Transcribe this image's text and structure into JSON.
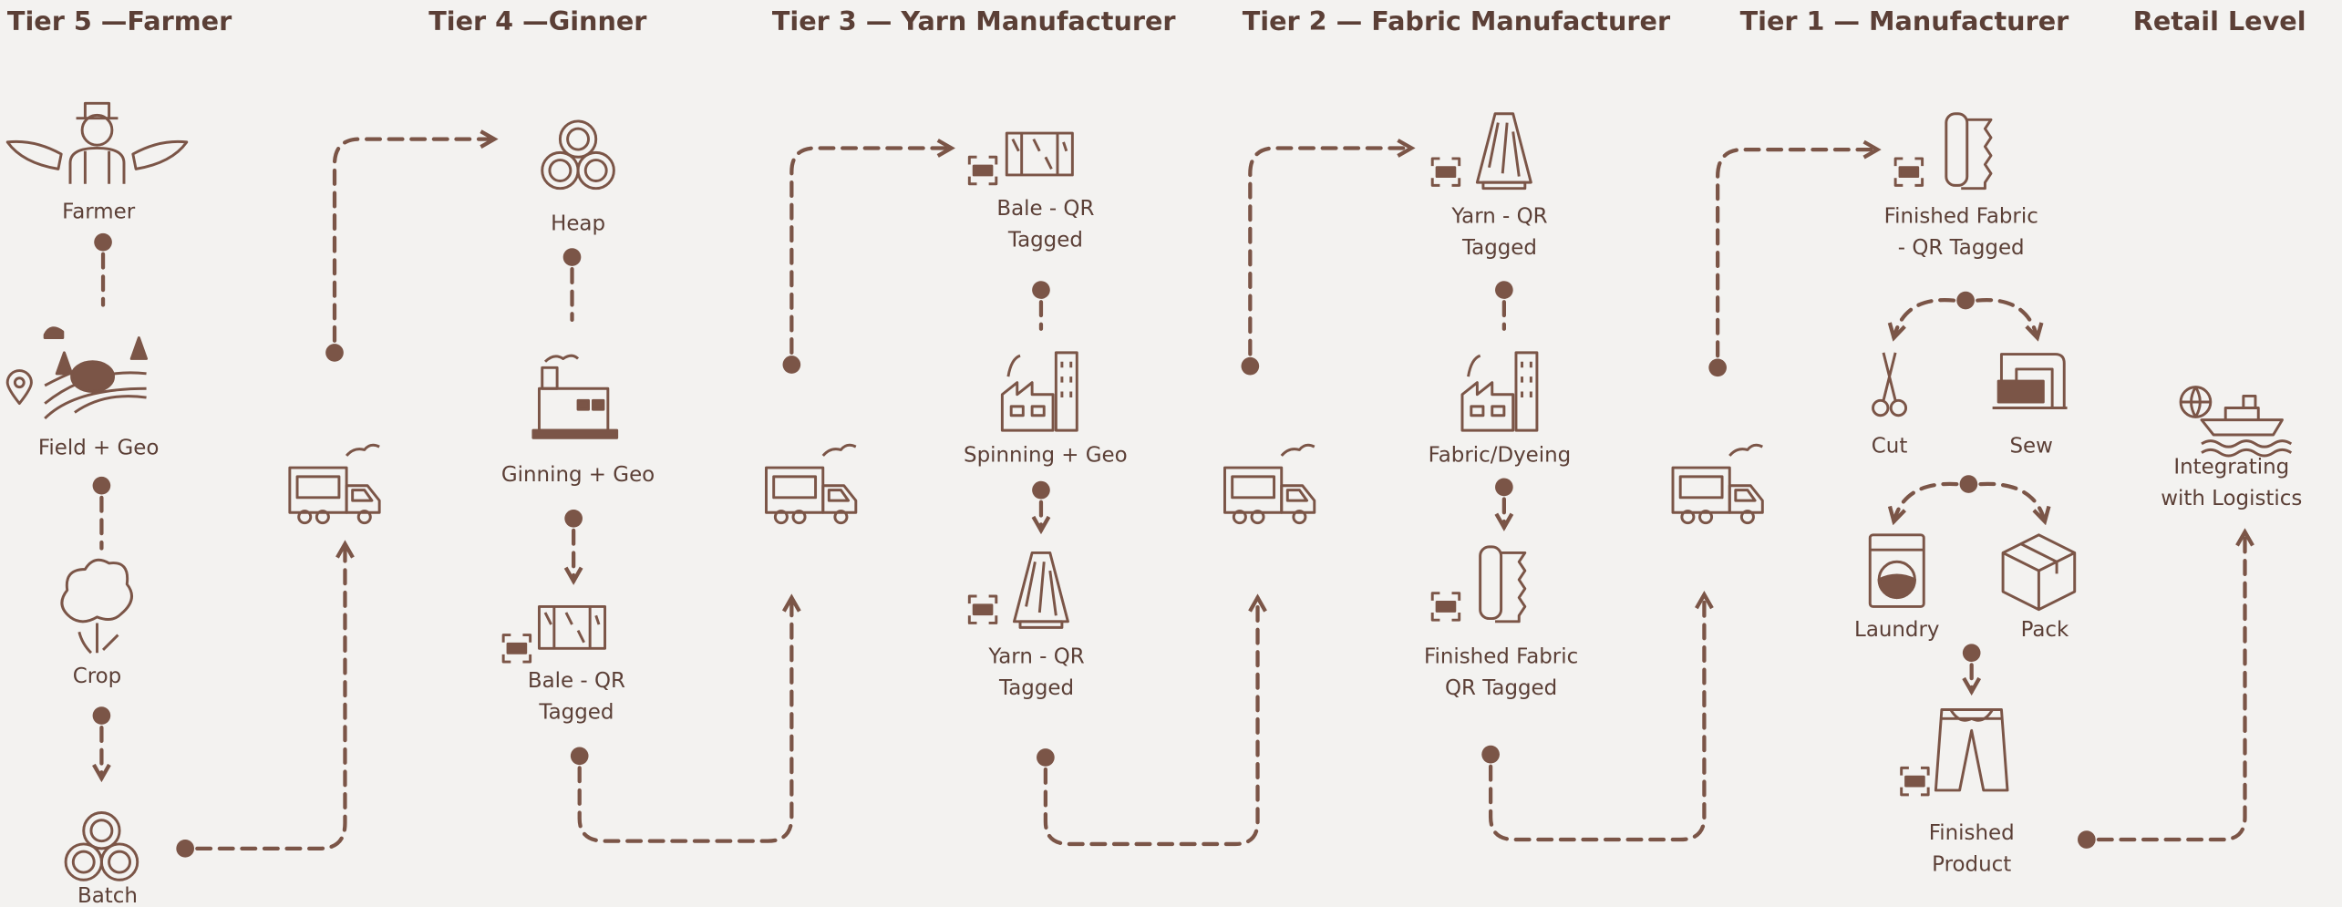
{
  "tiers": [
    {
      "title": "Tier 5 —Farmer",
      "nodes": [
        {
          "lines": [
            "Farmer"
          ]
        },
        {
          "lines": [
            "Field + Geo"
          ]
        },
        {
          "lines": [
            "Crop"
          ]
        },
        {
          "lines": [
            "Batch"
          ]
        }
      ]
    },
    {
      "title": "Tier 4 —Ginner",
      "nodes": [
        {
          "lines": [
            "Heap"
          ]
        },
        {
          "lines": [
            "Ginning + Geo"
          ]
        },
        {
          "lines": [
            "Bale - QR",
            "Tagged"
          ]
        }
      ]
    },
    {
      "title": "Tier 3 — Yarn Manufacturer",
      "nodes": [
        {
          "lines": [
            "Bale - QR",
            "Tagged"
          ]
        },
        {
          "lines": [
            "Spinning + Geo"
          ]
        },
        {
          "lines": [
            "Yarn - QR",
            "Tagged"
          ]
        }
      ]
    },
    {
      "title": "Tier 2 — Fabric Manufacturer",
      "nodes": [
        {
          "lines": [
            "Yarn - QR",
            "Tagged"
          ]
        },
        {
          "lines": [
            "Fabric/Dyeing"
          ]
        },
        {
          "lines": [
            "Finished Fabric",
            "QR Tagged"
          ]
        }
      ]
    },
    {
      "title": "Tier 1 — Manufacturer",
      "nodes": [
        {
          "lines": [
            "Finished Fabric",
            "- QR Tagged"
          ]
        },
        {
          "lines": [
            "Cut"
          ]
        },
        {
          "lines": [
            "Sew"
          ]
        },
        {
          "lines": [
            "Laundry"
          ]
        },
        {
          "lines": [
            "Pack"
          ]
        },
        {
          "lines": [
            "Finished",
            "Product"
          ]
        }
      ]
    },
    {
      "title": "Retail Level",
      "nodes": [
        {
          "lines": [
            "Integrating",
            "with Logistics"
          ]
        }
      ]
    }
  ]
}
